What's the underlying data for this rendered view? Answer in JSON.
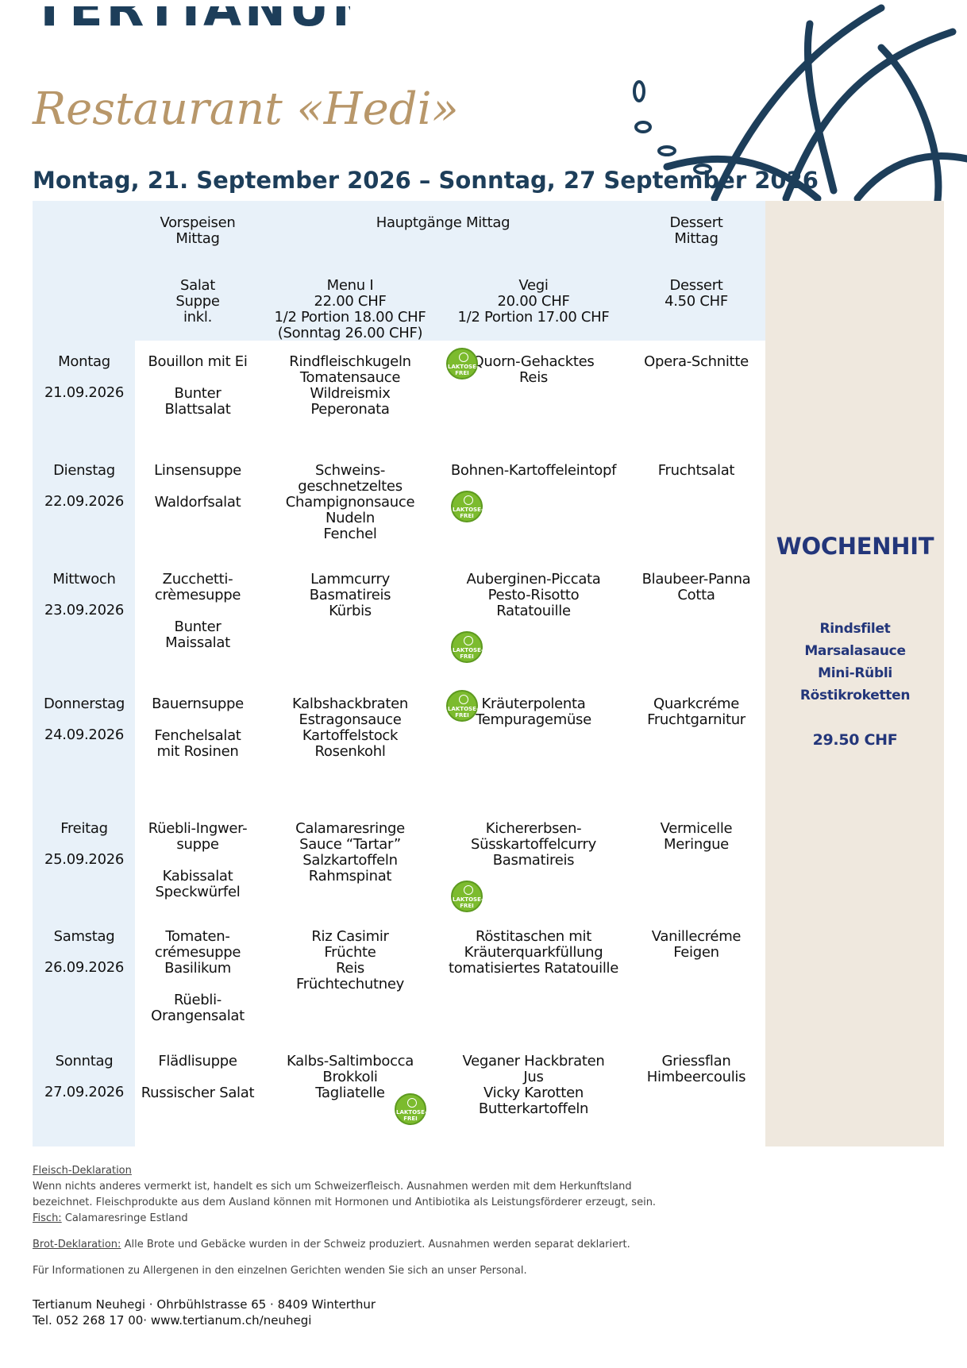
{
  "header": {
    "logo": "TERTIANUM",
    "restaurant": "Restaurant «Hedi»",
    "week": "Montag, 21. September 2026 – Sonntag, 27 September 2026"
  },
  "table": {
    "headings": {
      "starter": [
        "Vorspeisen",
        "Mittag"
      ],
      "main": "Hauptgänge Mittag",
      "dessert": [
        "Dessert",
        "Mittag"
      ]
    },
    "subheadings": {
      "starter": [
        "Salat",
        "Suppe",
        "inkl."
      ],
      "menu": [
        "Menu I",
        "22.00 CHF",
        "1/2 Portion 18.00 CHF",
        "(Sonntag 26.00 CHF)"
      ],
      "vegi": [
        "Vegi",
        "20.00 CHF",
        "1/2 Portion 17.00 CHF"
      ],
      "dessert": [
        "Dessert",
        "4.50 CHF"
      ]
    },
    "laktose_label": [
      "LAKTOSE-",
      "FREI"
    ],
    "rows": [
      {
        "day": "Montag",
        "date": "21.09.2026",
        "starters": [
          [
            "Bouillon mit Ei"
          ],
          [
            "Bunter",
            "Blattsalat"
          ]
        ],
        "menu": [
          "Rindfleischkugeln",
          "Tomatensauce",
          "Wildreismix",
          "Peperonata"
        ],
        "vegi": [
          "Quorn-Gehacktes",
          "Reis"
        ],
        "dessert": [
          "Opera-Schnitte"
        ],
        "laktose_frei": "vegi"
      },
      {
        "day": "Dienstag",
        "date": "22.09.2026",
        "starters": [
          [
            "Linsensuppe"
          ],
          [
            "Waldorfsalat"
          ]
        ],
        "menu": [
          "Schweins-",
          "geschnetzeltes",
          "Champignonsauce",
          "Nudeln",
          "Fenchel"
        ],
        "vegi": [
          "Bohnen-Kartoffeleintopf"
        ],
        "dessert": [
          "Fruchtsalat"
        ],
        "laktose_frei": "vegi"
      },
      {
        "day": "Mittwoch",
        "date": "23.09.2026",
        "starters": [
          [
            "Zucchetti-",
            "crèmesuppe"
          ],
          [
            "Bunter",
            "Maissalat"
          ]
        ],
        "menu": [
          "Lammcurry",
          "Basmatireis",
          "Kürbis"
        ],
        "vegi": [
          "Auberginen-Piccata",
          "Pesto-Risotto",
          "Ratatouille"
        ],
        "dessert": [
          "Blaubeer-Panna",
          "Cotta"
        ],
        "laktose_frei": "vegi"
      },
      {
        "day": "Donnerstag",
        "date": "24.09.2026",
        "starters": [
          [
            "Bauernsuppe"
          ],
          [
            "Fenchelsalat",
            "mit Rosinen"
          ]
        ],
        "menu": [
          "Kalbshackbraten",
          "Estragonsauce",
          "Kartoffelstock",
          "Rosenkohl"
        ],
        "vegi": [
          "Kräuterpolenta",
          "Tempuragemüse"
        ],
        "dessert": [
          "Quarkcréme",
          "Fruchtgarnitur"
        ],
        "laktose_frei": "vegi"
      },
      {
        "day": "Freitag",
        "date": "25.09.2026",
        "starters": [
          [
            "Rüebli-Ingwer-",
            "suppe"
          ],
          [
            "Kabissalat",
            "Speckwürfel"
          ]
        ],
        "menu": [
          "Calamaresringe",
          "Sauce “Tartar”",
          "Salzkartoffeln",
          "Rahmspinat"
        ],
        "vegi": [
          "Kichererbsen-",
          "Süsskartoffelcurry",
          "Basmatireis"
        ],
        "dessert": [
          "Vermicelle",
          "Meringue"
        ],
        "laktose_frei": "vegi"
      },
      {
        "day": "Samstag",
        "date": "26.09.2026",
        "starters": [
          [
            "Tomaten-",
            "crémesuppe",
            "Basilikum"
          ],
          [
            "Rüebli-",
            "Orangensalat"
          ]
        ],
        "menu": [
          "Riz Casimir",
          "Früchte",
          "Reis",
          "Früchtechutney"
        ],
        "vegi": [
          "Röstitaschen mit",
          "Kräuterquarkfüllung",
          "tomatisiertes Ratatouille"
        ],
        "dessert": [
          "Vanillecréme",
          "Feigen"
        ],
        "laktose_frei": null
      },
      {
        "day": "Sonntag",
        "date": "27.09.2026",
        "starters": [
          [
            "Flädlisuppe"
          ],
          [
            "Russischer Salat"
          ]
        ],
        "menu": [
          "Kalbs-Saltimbocca",
          "Brokkoli",
          "Tagliatelle"
        ],
        "vegi": [
          "Veganer Hackbraten",
          "Jus",
          "Vicky Karotten",
          "Butterkartoffeln"
        ],
        "dessert": [
          "Griessflan",
          "Himbeercoulis"
        ],
        "laktose_frei": "menu"
      }
    ]
  },
  "wochenhit": {
    "title": "WOCHENHIT",
    "items": [
      "Rindsfilet",
      "Marsalasauce",
      "Mini-Rübli",
      "Röstikroketten"
    ],
    "price": "29.50 CHF"
  },
  "footer": {
    "meat_title": "Fleisch-Deklaration",
    "meat_text": [
      "Wenn nichts anderes vermerkt ist, handelt es sich um Schweizerfleisch. Ausnahmen werden mit dem Herkunftsland",
      "bezeichnet. Fleischprodukte aus dem Ausland können mit Hormonen und Antibiotika als Leistungsförderer erzeugt, sein."
    ],
    "fish_title": "Fisch:",
    "fish_text": "Calamaresringe Estland",
    "bread_title": "Brot-Deklaration:",
    "bread_text": "Alle Brote und Gebäcke wurden in der Schweiz produziert. Ausnahmen werden separat deklariert.",
    "allergen": "Für Informationen zu Allergenen in den einzelnen Gerichten wenden Sie sich an unser Personal.",
    "address": "Tertianum Neuhegi · Ohrbühlstrasse 65 · 8409 Winterthur",
    "contact": "Tel. 052 268 17 00· www.tertianum.ch/neuhegi"
  }
}
